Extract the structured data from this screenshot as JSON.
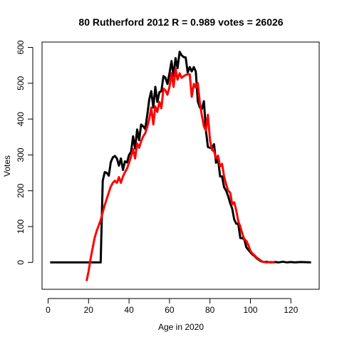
{
  "chart_data": {
    "type": "line",
    "title": "80 Rutherford 2012 R = 0.989 votes = 26026",
    "xlabel": "Age in 2020",
    "ylabel": "Votes",
    "xlim": [
      -3,
      134
    ],
    "ylim": [
      -75,
      615
    ],
    "xticks": [
      0,
      20,
      40,
      60,
      80,
      100,
      120
    ],
    "yticks": [
      0,
      100,
      200,
      300,
      400,
      500,
      600
    ],
    "grid": false,
    "series": [
      {
        "color": "#000000",
        "points": [
          [
            1,
            0
          ],
          [
            26,
            0
          ],
          [
            27,
            228
          ],
          [
            28,
            252
          ],
          [
            29,
            250
          ],
          [
            30,
            242
          ],
          [
            31,
            280
          ],
          [
            32,
            293
          ],
          [
            33,
            297
          ],
          [
            34,
            290
          ],
          [
            35,
            270
          ],
          [
            36,
            290
          ],
          [
            37,
            258
          ],
          [
            38,
            282
          ],
          [
            39,
            279
          ],
          [
            40,
            300
          ],
          [
            41,
            308
          ],
          [
            42,
            352
          ],
          [
            43,
            318
          ],
          [
            44,
            371
          ],
          [
            45,
            341
          ],
          [
            46,
            385
          ],
          [
            47,
            380
          ],
          [
            48,
            372
          ],
          [
            49,
            410
          ],
          [
            50,
            455
          ],
          [
            51,
            478
          ],
          [
            52,
            432
          ],
          [
            53,
            490
          ],
          [
            54,
            448
          ],
          [
            55,
            475
          ],
          [
            56,
            478
          ],
          [
            57,
            520
          ],
          [
            58,
            515
          ],
          [
            59,
            498
          ],
          [
            60,
            528
          ],
          [
            61,
            562
          ],
          [
            62,
            520
          ],
          [
            63,
            570
          ],
          [
            64,
            542
          ],
          [
            65,
            588
          ],
          [
            66,
            578
          ],
          [
            67,
            573
          ],
          [
            68,
            572
          ],
          [
            69,
            530
          ],
          [
            70,
            545
          ],
          [
            71,
            533
          ],
          [
            72,
            545
          ],
          [
            73,
            533
          ],
          [
            74,
            450
          ],
          [
            75,
            432
          ],
          [
            76,
            428
          ],
          [
            77,
            450
          ],
          [
            78,
            368
          ],
          [
            79,
            322
          ],
          [
            80,
            320
          ],
          [
            81,
            318
          ],
          [
            82,
            330
          ],
          [
            83,
            278
          ],
          [
            84,
            290
          ],
          [
            85,
            240
          ],
          [
            86,
            240
          ],
          [
            87,
            210
          ],
          [
            88,
            200
          ],
          [
            89,
            185
          ],
          [
            90,
            165
          ],
          [
            91,
            150
          ],
          [
            92,
            120
          ],
          [
            93,
            108
          ],
          [
            94,
            108
          ],
          [
            95,
            68
          ],
          [
            96,
            68
          ],
          [
            97,
            64
          ],
          [
            98,
            42
          ],
          [
            99,
            35
          ],
          [
            100,
            28
          ],
          [
            101,
            22
          ],
          [
            102,
            18
          ],
          [
            103,
            12
          ],
          [
            104,
            8
          ],
          [
            105,
            4
          ],
          [
            106,
            2
          ],
          [
            107,
            1
          ],
          [
            108,
            2
          ],
          [
            109,
            1
          ],
          [
            110,
            0
          ],
          [
            112,
            1
          ],
          [
            114,
            0
          ],
          [
            116,
            2
          ],
          [
            118,
            0
          ],
          [
            120,
            1
          ],
          [
            122,
            0
          ],
          [
            125,
            1
          ],
          [
            130,
            0
          ]
        ]
      },
      {
        "color": "#ff0000",
        "points": [
          [
            19,
            -52
          ],
          [
            20,
            -25
          ],
          [
            21,
            10
          ],
          [
            22,
            40
          ],
          [
            23,
            68
          ],
          [
            24,
            88
          ],
          [
            25,
            103
          ],
          [
            26,
            118
          ],
          [
            27,
            140
          ],
          [
            28,
            160
          ],
          [
            29,
            178
          ],
          [
            30,
            195
          ],
          [
            31,
            212
          ],
          [
            32,
            222
          ],
          [
            33,
            228
          ],
          [
            34,
            222
          ],
          [
            35,
            238
          ],
          [
            36,
            222
          ],
          [
            37,
            240
          ],
          [
            38,
            252
          ],
          [
            39,
            262
          ],
          [
            40,
            278
          ],
          [
            41,
            295
          ],
          [
            42,
            316
          ],
          [
            43,
            290
          ],
          [
            44,
            332
          ],
          [
            45,
            320
          ],
          [
            46,
            338
          ],
          [
            47,
            352
          ],
          [
            48,
            360
          ],
          [
            49,
            378
          ],
          [
            50,
            400
          ],
          [
            51,
            432
          ],
          [
            52,
            385
          ],
          [
            53,
            435
          ],
          [
            54,
            420
          ],
          [
            55,
            448
          ],
          [
            56,
            430
          ],
          [
            57,
            485
          ],
          [
            58,
            480
          ],
          [
            59,
            468
          ],
          [
            60,
            490
          ],
          [
            61,
            528
          ],
          [
            62,
            490
          ],
          [
            63,
            540
          ],
          [
            64,
            510
          ],
          [
            65,
            528
          ],
          [
            66,
            515
          ],
          [
            67,
            520
          ],
          [
            68,
            523
          ],
          [
            69,
            525
          ],
          [
            70,
            525
          ],
          [
            71,
            462
          ],
          [
            72,
            498
          ],
          [
            73,
            488
          ],
          [
            74,
            500
          ],
          [
            75,
            445
          ],
          [
            76,
            410
          ],
          [
            77,
            380
          ],
          [
            78,
            368
          ],
          [
            79,
            412
          ],
          [
            80,
            342
          ],
          [
            81,
            314
          ],
          [
            82,
            310
          ],
          [
            83,
            290
          ],
          [
            84,
            298
          ],
          [
            85,
            268
          ],
          [
            86,
            275
          ],
          [
            87,
            240
          ],
          [
            88,
            218
          ],
          [
            89,
            200
          ],
          [
            90,
            195
          ],
          [
            91,
            162
          ],
          [
            92,
            168
          ],
          [
            93,
            145
          ],
          [
            94,
            115
          ],
          [
            95,
            100
          ],
          [
            96,
            80
          ],
          [
            97,
            65
          ],
          [
            98,
            60
          ],
          [
            99,
            48
          ],
          [
            100,
            32
          ],
          [
            101,
            25
          ],
          [
            102,
            20
          ],
          [
            103,
            14
          ],
          [
            104,
            10
          ],
          [
            105,
            6
          ],
          [
            106,
            2
          ],
          [
            107,
            1
          ],
          [
            108,
            0
          ],
          [
            110,
            1
          ],
          [
            112,
            0
          ]
        ]
      }
    ]
  }
}
